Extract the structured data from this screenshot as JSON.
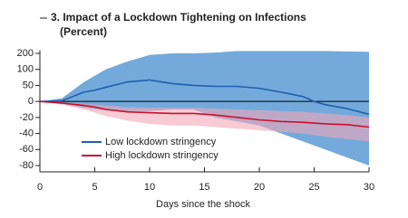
{
  "chart_data": {
    "type": "line",
    "title": "3. Impact of a Lockdown Tightening on Infections",
    "subtitle": "(Percent)",
    "x_label": "Days since the shock",
    "x": [
      0,
      2,
      4,
      5,
      6,
      8,
      10,
      12,
      14,
      16,
      18,
      20,
      22,
      24,
      25,
      26,
      28,
      30
    ],
    "series": [
      {
        "name": "Low lockdown stringency",
        "color": "#1f5fad",
        "values": [
          0,
          2,
          29,
          35,
          44,
          61,
          67,
          56,
          50,
          47,
          47,
          41,
          29,
          15,
          0,
          -4,
          -9,
          -16
        ]
      },
      {
        "name": "High lockdown stringency",
        "color": "#c8102e",
        "values": [
          0,
          -2,
          -5,
          -7,
          -10,
          -13,
          -14,
          -15,
          -15,
          -17,
          -20,
          -23,
          -25,
          -26,
          -27,
          -28,
          -29,
          -32
        ]
      }
    ],
    "bands": [
      {
        "color": "#5b9bd5",
        "upper": [
          0,
          10,
          60,
          80,
          100,
          150,
          190,
          200,
          200,
          205,
          215,
          215,
          215,
          215,
          215,
          215,
          212,
          210
        ],
        "lower": [
          0,
          -3,
          -8,
          -10,
          -11,
          -12,
          -12,
          -10,
          -10,
          -20,
          -25,
          -30,
          -40,
          -50,
          -55,
          -60,
          -70,
          -80
        ]
      },
      {
        "color": "#f2a7b8",
        "upper": [
          0,
          -1,
          -3,
          -4,
          -5,
          -7,
          -8,
          -8,
          -8,
          -9,
          -10,
          -11,
          -12,
          -13,
          -14,
          -15,
          -17,
          -20
        ],
        "lower": [
          0,
          -4,
          -10,
          -14,
          -18,
          -24,
          -28,
          -30,
          -30,
          -32,
          -34,
          -36,
          -38,
          -40,
          -42,
          -44,
          -47,
          -50
        ]
      }
    ],
    "xlim": [
      0,
      30
    ],
    "xticks": [
      0,
      5,
      10,
      15,
      20,
      25,
      30
    ],
    "ylim": [
      -90,
      220
    ],
    "yticks": [
      200,
      100,
      50,
      0,
      -20,
      -40,
      -60,
      -80
    ],
    "yscale": "piecewise",
    "legend": "lower left"
  }
}
